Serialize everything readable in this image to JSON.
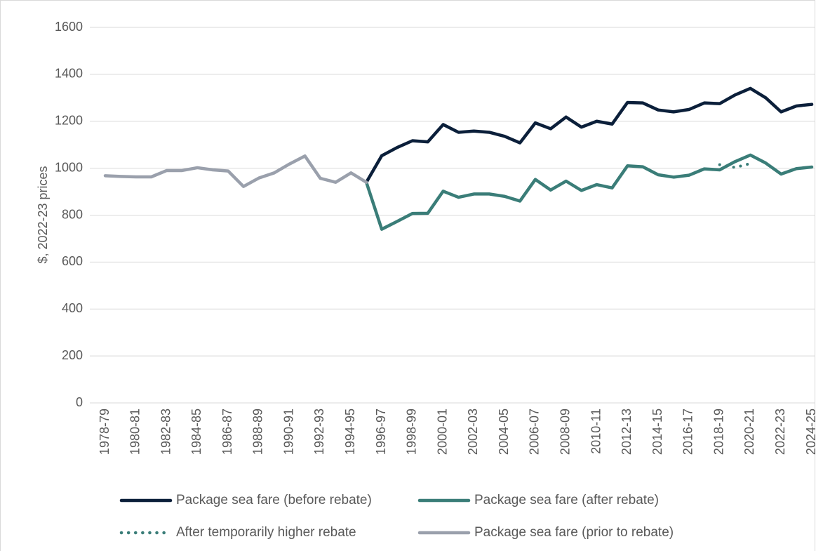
{
  "chart_data": {
    "type": "line",
    "y_label": "$, 2022-23 prices",
    "categories": [
      "1978-79",
      null,
      "1980-81",
      null,
      "1982-83",
      null,
      "1984-85",
      null,
      "1986-87",
      null,
      "1988-89",
      null,
      "1990-91",
      null,
      "1992-93",
      null,
      "1994-95",
      null,
      "1996-97",
      null,
      "1998-99",
      null,
      "2000-01",
      null,
      "2002-03",
      null,
      "2004-05",
      null,
      "2006-07",
      null,
      "2008-09",
      null,
      "2010-11",
      null,
      "2012-13",
      null,
      "2014-15",
      null,
      "2016-17",
      null,
      "2018-19",
      null,
      "2020-21",
      null,
      "2022-23",
      null,
      "2024-25"
    ],
    "series": [
      {
        "name": "Package sea fare (before rebate)",
        "color": "#0b1f3a",
        "style": "solid",
        "values": [
          null,
          null,
          null,
          null,
          null,
          null,
          null,
          null,
          null,
          null,
          null,
          null,
          null,
          null,
          null,
          null,
          null,
          940,
          1053,
          1088,
          1117,
          1112,
          1186,
          1153,
          1158,
          1153,
          1136,
          1108,
          1193,
          1168,
          1218,
          1175,
          1200,
          1188,
          1280,
          1278,
          1248,
          1240,
          1250,
          1278,
          1275,
          1312,
          1340,
          1300,
          1240,
          1265,
          1272
        ]
      },
      {
        "name": "Package sea fare (after rebate)",
        "color": "#3a7d78",
        "style": "solid",
        "values": [
          null,
          null,
          null,
          null,
          null,
          null,
          null,
          null,
          null,
          null,
          null,
          null,
          null,
          null,
          null,
          null,
          null,
          940,
          740,
          773,
          807,
          808,
          902,
          876,
          890,
          890,
          880,
          860,
          952,
          907,
          945,
          905,
          930,
          916,
          1010,
          1006,
          972,
          962,
          970,
          997,
          993,
          1028,
          1056,
          1022,
          975,
          998,
          1005
        ]
      },
      {
        "name": "After temporarily higher rebate",
        "color": "#3a7d78",
        "style": "dotted",
        "values": [
          null,
          null,
          null,
          null,
          null,
          null,
          null,
          null,
          null,
          null,
          null,
          null,
          null,
          null,
          null,
          null,
          null,
          null,
          null,
          null,
          null,
          null,
          null,
          null,
          null,
          null,
          null,
          null,
          null,
          null,
          null,
          null,
          null,
          null,
          null,
          null,
          null,
          null,
          null,
          null,
          1015,
          1003,
          1020,
          null,
          null,
          null,
          null
        ]
      },
      {
        "name": "Package sea fare (prior to rebate)",
        "color": "#9aa0ac",
        "style": "solid",
        "values": [
          968,
          965,
          963,
          963,
          990,
          990,
          1002,
          993,
          988,
          922,
          958,
          980,
          1018,
          1052,
          957,
          940,
          980,
          940,
          null,
          null,
          null,
          null,
          null,
          null,
          null,
          null,
          null,
          null,
          null,
          null,
          null,
          null,
          null,
          null,
          null,
          null,
          null,
          null,
          null,
          null,
          null,
          null,
          null,
          null,
          null,
          null,
          null
        ]
      }
    ],
    "ylim": [
      0,
      1600
    ],
    "yticks": [
      0,
      200,
      400,
      600,
      800,
      1000,
      1200,
      1400,
      1600
    ],
    "grid": true
  }
}
